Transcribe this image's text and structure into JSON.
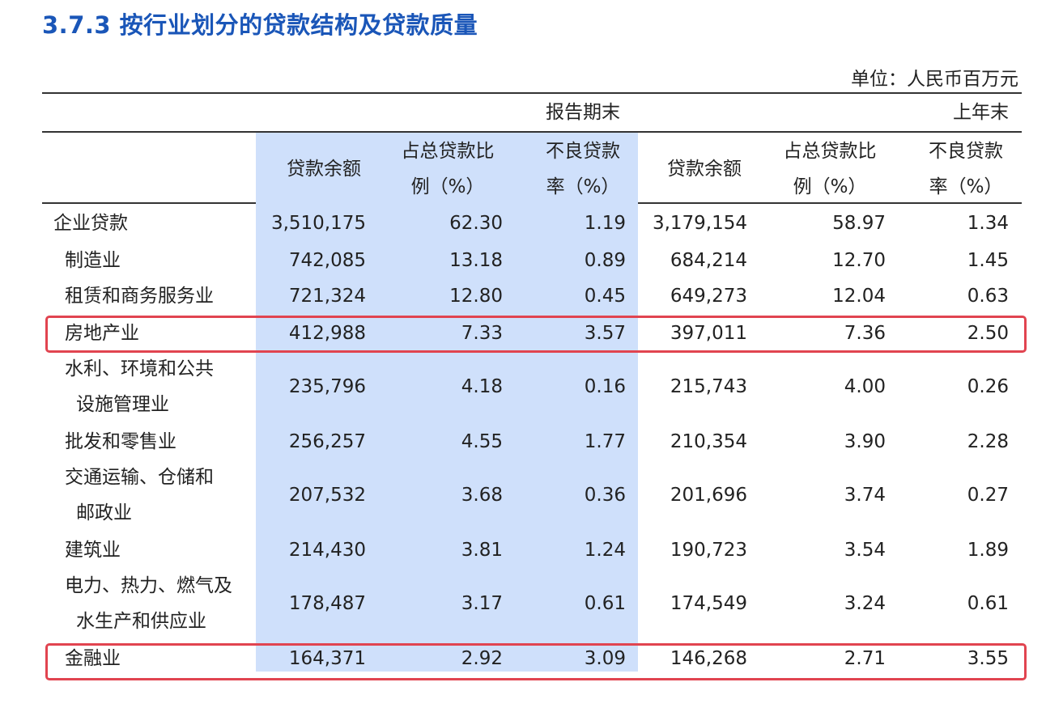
{
  "title": "3.7.3  按行业划分的贷款结构及贷款质量",
  "unit": "单位：人民币百万元",
  "header": {
    "period_current": "报告期末",
    "period_prior": "上年末",
    "col_balance": "贷款余额",
    "col_ratio_line1": "占总贷款比",
    "col_ratio_line2": "例（%）",
    "col_npl_line1": "不良贷款",
    "col_npl_line2": "率（%）"
  },
  "rows": [
    {
      "label_lines": [
        "企业贷款"
      ],
      "cur_balance": "3,510,175",
      "cur_ratio": "62.30",
      "cur_npl": "1.19",
      "prev_balance": "3,179,154",
      "prev_ratio": "58.97",
      "prev_npl": "1.34"
    },
    {
      "label_lines": [
        "制造业"
      ],
      "cur_balance": "742,085",
      "cur_ratio": "13.18",
      "cur_npl": "0.89",
      "prev_balance": "684,214",
      "prev_ratio": "12.70",
      "prev_npl": "1.45"
    },
    {
      "label_lines": [
        "租赁和商务服务业"
      ],
      "cur_balance": "721,324",
      "cur_ratio": "12.80",
      "cur_npl": "0.45",
      "prev_balance": "649,273",
      "prev_ratio": "12.04",
      "prev_npl": "0.63"
    },
    {
      "label_lines": [
        "房地产业"
      ],
      "cur_balance": "412,988",
      "cur_ratio": "7.33",
      "cur_npl": "3.57",
      "prev_balance": "397,011",
      "prev_ratio": "7.36",
      "prev_npl": "2.50"
    },
    {
      "label_lines": [
        "水利、环境和公共",
        "设施管理业"
      ],
      "cur_balance": "235,796",
      "cur_ratio": "4.18",
      "cur_npl": "0.16",
      "prev_balance": "215,743",
      "prev_ratio": "4.00",
      "prev_npl": "0.26"
    },
    {
      "label_lines": [
        "批发和零售业"
      ],
      "cur_balance": "256,257",
      "cur_ratio": "4.55",
      "cur_npl": "1.77",
      "prev_balance": "210,354",
      "prev_ratio": "3.90",
      "prev_npl": "2.28"
    },
    {
      "label_lines": [
        "交通运输、仓储和",
        "邮政业"
      ],
      "cur_balance": "207,532",
      "cur_ratio": "3.68",
      "cur_npl": "0.36",
      "prev_balance": "201,696",
      "prev_ratio": "3.74",
      "prev_npl": "0.27"
    },
    {
      "label_lines": [
        "建筑业"
      ],
      "cur_balance": "214,430",
      "cur_ratio": "3.81",
      "cur_npl": "1.24",
      "prev_balance": "190,723",
      "prev_ratio": "3.54",
      "prev_npl": "1.89"
    },
    {
      "label_lines": [
        "电力、热力、燃气及",
        "水生产和供应业"
      ],
      "cur_balance": "178,487",
      "cur_ratio": "3.17",
      "cur_npl": "0.61",
      "prev_balance": "174,549",
      "prev_ratio": "3.24",
      "prev_npl": "0.61"
    },
    {
      "label_lines": [
        "金融业"
      ],
      "cur_balance": "164,371",
      "cur_ratio": "2.92",
      "cur_npl": "3.09",
      "prev_balance": "146,268",
      "prev_ratio": "2.71",
      "prev_npl": "3.55"
    }
  ],
  "colors": {
    "title": "#1a56b8",
    "highlight_column": "#cfe0fb",
    "highlight_box": "#e14450"
  }
}
